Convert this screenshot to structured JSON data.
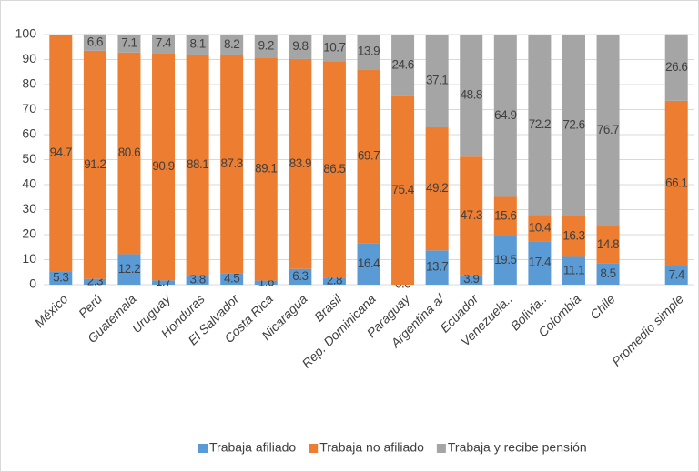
{
  "chart_data": {
    "type": "stacked_bar",
    "categories": [
      "México",
      "Perú",
      "Guatemala",
      "Uruguay",
      "Honduras",
      "El Salvador",
      "Costa Rica",
      "Nicaragua",
      "Brasil",
      "Rep. Dominicana",
      "Paraguay",
      "Argentina a/",
      "Ecuador",
      "Venezuela..",
      "Bolivia..",
      "Colombia",
      "Chile",
      null,
      "Promedio simple"
    ],
    "series": [
      {
        "name": "Trabaja afiliado",
        "color": "#5b9bd5",
        "values": [
          5.3,
          2.3,
          12.2,
          1.7,
          3.8,
          4.5,
          1.6,
          6.3,
          2.8,
          16.4,
          0.0,
          13.7,
          3.9,
          19.5,
          17.4,
          11.1,
          8.5,
          null,
          7.4
        ],
        "value_labels": [
          "5.3",
          "2.3",
          "12.2",
          "1.7",
          "3.8",
          "4.5",
          "1.6",
          "6.3",
          "2.8",
          "16.4",
          "0.0",
          "13.7",
          "3.9",
          "19.5",
          "17.4",
          "11.1",
          "8.5",
          null,
          "7.4"
        ]
      },
      {
        "name": "Trabaja no afiliado",
        "color": "#ed7d31",
        "values": [
          94.7,
          91.2,
          80.6,
          90.9,
          88.1,
          87.3,
          89.1,
          83.9,
          86.5,
          69.7,
          75.4,
          49.2,
          47.3,
          15.6,
          10.4,
          16.3,
          14.8,
          null,
          66.1
        ]
      },
      {
        "name": "Trabaja y recibe pensión",
        "color": "#a5a5a5",
        "values": [
          null,
          6.6,
          7.1,
          7.4,
          8.1,
          8.2,
          9.2,
          9.8,
          10.7,
          13.9,
          24.6,
          37.1,
          48.8,
          64.9,
          72.2,
          72.6,
          76.7,
          null,
          26.6
        ]
      }
    ],
    "ylim": [
      0,
      100
    ],
    "yticks": [
      0,
      10,
      20,
      30,
      40,
      50,
      60,
      70,
      80,
      90,
      100
    ],
    "grid": true,
    "legend": "bottom"
  }
}
